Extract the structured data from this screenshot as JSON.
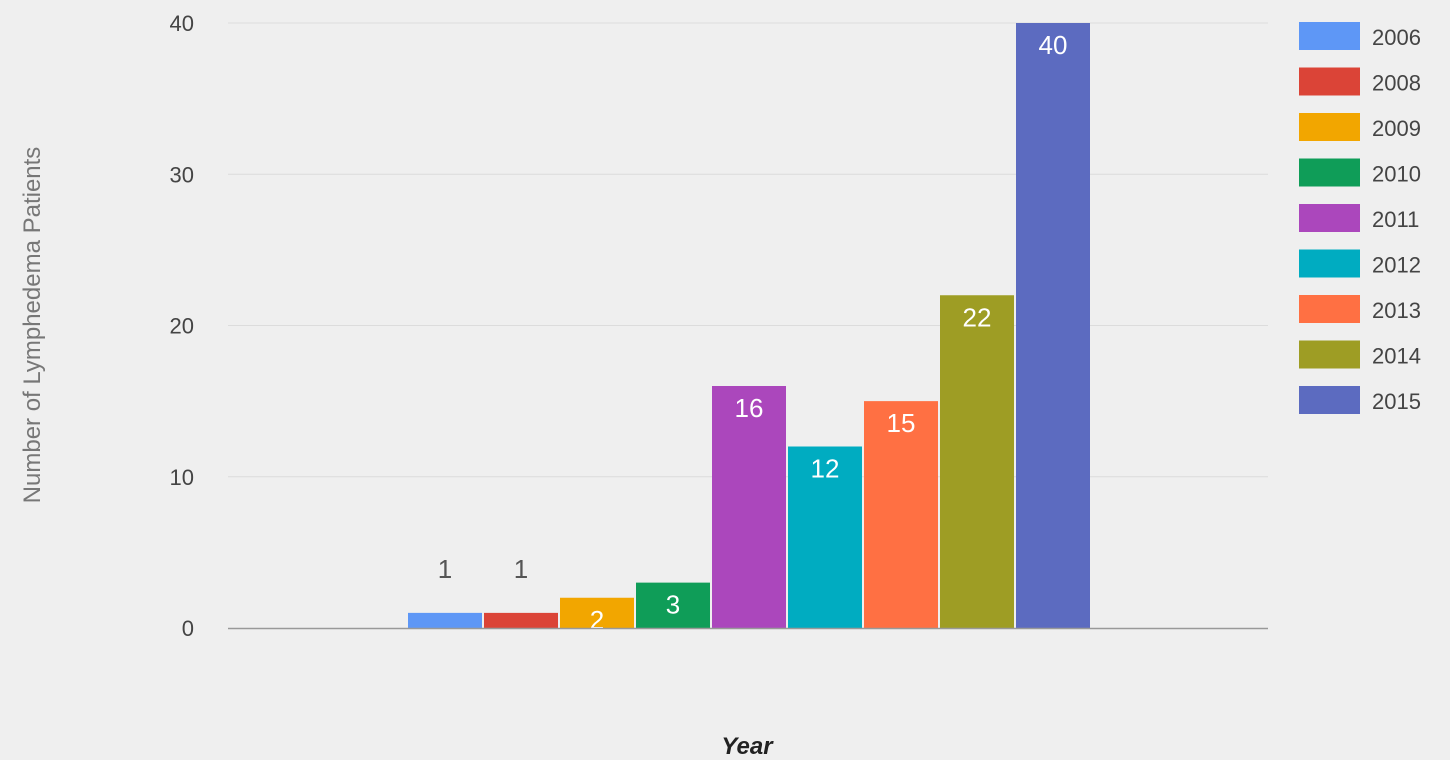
{
  "chart_data": {
    "type": "bar",
    "categories": [
      "2006",
      "2008",
      "2009",
      "2010",
      "2011",
      "2012",
      "2013",
      "2014",
      "2015"
    ],
    "values": [
      1,
      1,
      2,
      3,
      16,
      12,
      15,
      22,
      40
    ],
    "colors": [
      "#5e97f6",
      "#db4437",
      "#f2a600",
      "#0f9d58",
      "#ab47bc",
      "#00acc1",
      "#ff7043",
      "#9e9d24",
      "#5c6bc0"
    ],
    "xlabel": "Year",
    "ylabel": "Number of Lymphedema Patients",
    "ylim": [
      0,
      40
    ],
    "yticks": [
      0,
      10,
      20,
      30,
      40
    ],
    "grid": true,
    "legend_position": "right"
  }
}
